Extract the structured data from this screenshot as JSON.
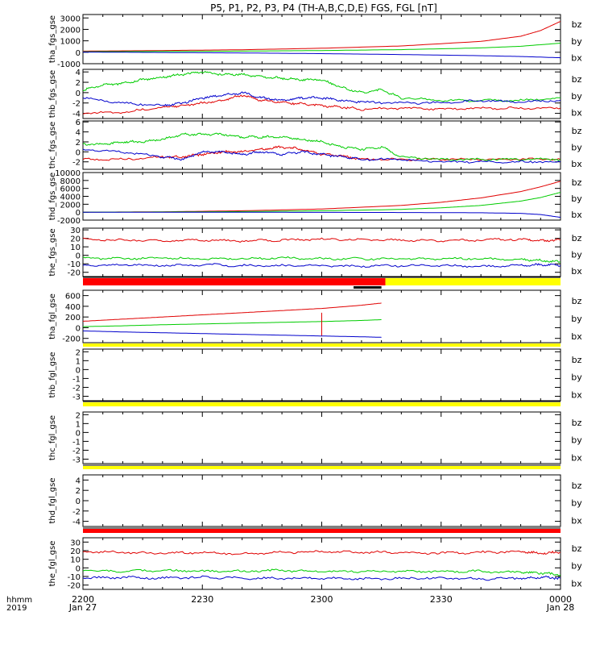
{
  "title": "P5, P1, P2, P3, P4 (TH-A,B,C,D,E) FGS, FGL [nT]",
  "colors": {
    "bz": "#e00000",
    "by": "#00cc00",
    "bx": "#0000cc",
    "flag_red": "#ff0000",
    "flag_yellow": "#ffff00",
    "flag_black": "#000000"
  },
  "x_axis": {
    "row_labels": [
      "hhmm",
      "2019"
    ],
    "ticks": [
      {
        "value": 0,
        "top": "2200",
        "bottom": "Jan 27"
      },
      {
        "value": 30,
        "top": "2230",
        "bottom": ""
      },
      {
        "value": 60,
        "top": "2300",
        "bottom": ""
      },
      {
        "value": 90,
        "top": "2330",
        "bottom": ""
      },
      {
        "value": 120,
        "top": "0000",
        "bottom": "Jan 28"
      }
    ],
    "range_minutes": [
      0,
      120
    ]
  },
  "chart_data": [
    {
      "type": "line",
      "ylabel": "tha_fgs_gse",
      "ylim": [
        -1000,
        3300
      ],
      "yticks": [
        -1000,
        0,
        1000,
        2000,
        3000
      ],
      "legend": [
        "bz",
        "by",
        "bx"
      ],
      "series": [
        {
          "name": "bz",
          "x": [
            0,
            20,
            40,
            60,
            80,
            100,
            110,
            115,
            120
          ],
          "values": [
            100,
            150,
            220,
            350,
            550,
            950,
            1400,
            1900,
            2700
          ]
        },
        {
          "name": "by",
          "x": [
            0,
            20,
            40,
            60,
            80,
            100,
            110,
            120
          ],
          "values": [
            50,
            70,
            100,
            150,
            230,
            380,
            520,
            800
          ]
        },
        {
          "name": "bx",
          "x": [
            0,
            20,
            40,
            60,
            80,
            100,
            110,
            120
          ],
          "values": [
            20,
            -20,
            -60,
            -120,
            -200,
            -300,
            -370,
            -480
          ]
        }
      ]
    },
    {
      "type": "line",
      "ylabel": "thb_fgs_gse",
      "ylim": [
        -5,
        4.5
      ],
      "yticks": [
        -4,
        -2,
        0,
        2,
        4
      ],
      "legend": [
        "bz",
        "by",
        "bx"
      ],
      "series": [
        {
          "name": "bz",
          "x": [
            0,
            10,
            20,
            25,
            30,
            35,
            40,
            45,
            50,
            55,
            60,
            65,
            70,
            80,
            90,
            100,
            110,
            120
          ],
          "values": [
            -4,
            -3.8,
            -2.8,
            -2.5,
            -2,
            -1.5,
            -0.5,
            -1.5,
            -1.8,
            -2.2,
            -2.5,
            -2.8,
            -3.2,
            -3,
            -3.2,
            -3,
            -3,
            -3
          ]
        },
        {
          "name": "by",
          "x": [
            0,
            5,
            10,
            15,
            20,
            25,
            30,
            35,
            40,
            45,
            50,
            55,
            60,
            65,
            70,
            75,
            80,
            90,
            100,
            110,
            120
          ],
          "values": [
            0.5,
            1.5,
            1.8,
            2.5,
            3,
            3.5,
            4,
            3.5,
            3.5,
            3,
            2.8,
            2.5,
            2.5,
            1,
            0,
            0.5,
            -1,
            -1.5,
            -1.5,
            -1.5,
            -1
          ]
        },
        {
          "name": "bx",
          "x": [
            0,
            10,
            20,
            25,
            30,
            35,
            40,
            45,
            50,
            55,
            60,
            65,
            70,
            80,
            90,
            100,
            110,
            120
          ],
          "values": [
            -1,
            -2,
            -2.5,
            -2,
            -1,
            -0.5,
            0,
            -1,
            -1.5,
            -1,
            -1,
            -1.5,
            -1.8,
            -2,
            -2,
            -1.5,
            -1.8,
            -1.5
          ]
        }
      ]
    },
    {
      "type": "line",
      "ylabel": "thc_fgs_gse",
      "ylim": [
        -3.5,
        6.2
      ],
      "yticks": [
        -2,
        0,
        2,
        4,
        6
      ],
      "legend": [
        "bz",
        "by",
        "bx"
      ],
      "series": [
        {
          "name": "bz",
          "x": [
            0,
            10,
            20,
            25,
            30,
            35,
            40,
            45,
            50,
            55,
            60,
            65,
            70,
            80,
            90,
            100,
            110,
            120
          ],
          "values": [
            -1.5,
            -1.5,
            -1,
            -1,
            -0.5,
            0,
            0,
            0.5,
            1,
            0.5,
            -0.5,
            -0.8,
            -1.5,
            -1.5,
            -1.5,
            -1.5,
            -1.5,
            -1.5
          ]
        },
        {
          "name": "by",
          "x": [
            0,
            5,
            10,
            15,
            20,
            25,
            30,
            35,
            40,
            45,
            50,
            55,
            60,
            65,
            70,
            75,
            80,
            90,
            100,
            110,
            120
          ],
          "values": [
            1.5,
            1.5,
            2,
            2,
            2.5,
            3.5,
            3.5,
            3.5,
            3,
            3,
            3,
            2.5,
            2,
            1,
            0.5,
            1,
            -1,
            -1.5,
            -1.5,
            -1.5,
            -1.5
          ]
        },
        {
          "name": "bx",
          "x": [
            0,
            10,
            20,
            25,
            30,
            35,
            40,
            45,
            50,
            55,
            60,
            65,
            70,
            80,
            90,
            100,
            110,
            120
          ],
          "values": [
            0.5,
            0,
            -1,
            -1.5,
            0,
            0,
            -0.5,
            0,
            -0.5,
            0,
            -0.5,
            -1,
            -1.5,
            -1.5,
            -2,
            -2,
            -2,
            -2
          ]
        }
      ]
    },
    {
      "type": "line",
      "ylabel": "thd_fgs_gse",
      "ylim": [
        -2000,
        10000
      ],
      "yticks": [
        -2000,
        0,
        2000,
        4000,
        6000,
        8000,
        10000
      ],
      "legend": [
        "bz",
        "by",
        "bx"
      ],
      "series": [
        {
          "name": "bz",
          "x": [
            0,
            20,
            40,
            60,
            80,
            90,
            100,
            110,
            115,
            120
          ],
          "values": [
            0,
            100,
            350,
            800,
            1700,
            2500,
            3600,
            5200,
            6400,
            7800
          ]
        },
        {
          "name": "by",
          "x": [
            0,
            20,
            40,
            60,
            80,
            90,
            100,
            110,
            115,
            120
          ],
          "values": [
            0,
            50,
            150,
            350,
            700,
            1100,
            1700,
            2800,
            3700,
            5000
          ]
        },
        {
          "name": "bx",
          "x": [
            0,
            40,
            60,
            80,
            100,
            110,
            115,
            120
          ],
          "values": [
            0,
            -20,
            -50,
            -80,
            -150,
            -300,
            -600,
            -1300
          ]
        }
      ]
    },
    {
      "type": "line",
      "ylabel": "the_fgs_gse",
      "ylim": [
        -25,
        32
      ],
      "yticks": [
        -20,
        -10,
        0,
        10,
        20,
        30
      ],
      "legend": [
        "bz",
        "by",
        "bx"
      ],
      "series": [
        {
          "name": "bz",
          "x": [
            0,
            10,
            20,
            30,
            40,
            50,
            60,
            70,
            80,
            90,
            100,
            110,
            115,
            120
          ],
          "values": [
            19,
            18,
            17,
            18,
            17,
            18,
            19,
            18,
            18,
            17,
            18,
            19,
            17,
            18
          ]
        },
        {
          "name": "by",
          "x": [
            0,
            10,
            20,
            30,
            40,
            50,
            60,
            70,
            80,
            90,
            100,
            110,
            115,
            120
          ],
          "values": [
            -3,
            -4,
            -3,
            -4,
            -4,
            -3,
            -4,
            -4,
            -4,
            -4,
            -4,
            -5,
            -6,
            -8
          ]
        },
        {
          "name": "bx",
          "x": [
            0,
            10,
            20,
            30,
            40,
            50,
            60,
            70,
            80,
            90,
            100,
            110,
            115,
            120
          ],
          "values": [
            -12,
            -11,
            -12,
            -11,
            -12,
            -12,
            -12,
            -13,
            -12,
            -12,
            -13,
            -12,
            -11,
            -12
          ]
        }
      ]
    },
    {
      "type": "line",
      "ylabel": "tha_fgl_gse",
      "ylim": [
        -280,
        700
      ],
      "yticks": [
        -200,
        0,
        200,
        400,
        600
      ],
      "legend": [
        "bz",
        "by",
        "bx"
      ],
      "spike": {
        "x": 60,
        "from": 280,
        "to": -150
      },
      "series": [
        {
          "name": "bz",
          "x": [
            0,
            10,
            20,
            30,
            40,
            50,
            60,
            70,
            75
          ],
          "values": [
            120,
            160,
            200,
            240,
            280,
            320,
            360,
            420,
            460
          ]
        },
        {
          "name": "by",
          "x": [
            0,
            10,
            20,
            30,
            40,
            50,
            60,
            70,
            75
          ],
          "values": [
            20,
            35,
            55,
            70,
            85,
            100,
            115,
            135,
            150
          ]
        },
        {
          "name": "bx",
          "x": [
            0,
            10,
            20,
            30,
            40,
            50,
            60,
            70,
            75
          ],
          "values": [
            -60,
            -80,
            -95,
            -110,
            -125,
            -140,
            -155,
            -170,
            -180
          ]
        }
      ]
    },
    {
      "type": "line",
      "ylabel": "thb_fgl_gse",
      "ylim": [
        -3.5,
        2.3
      ],
      "yticks": [
        -3,
        -2,
        -1,
        0,
        1,
        2
      ],
      "legend": [
        "bz",
        "by",
        "bx"
      ],
      "series": []
    },
    {
      "type": "line",
      "ylabel": "thc_fgl_gse",
      "ylim": [
        -3.5,
        2.3
      ],
      "yticks": [
        -3,
        -2,
        -1,
        0,
        1,
        2
      ],
      "legend": [
        "bz",
        "by",
        "bx"
      ],
      "series": []
    },
    {
      "type": "line",
      "ylabel": "thd_fgl_gse",
      "ylim": [
        -5,
        5
      ],
      "yticks": [
        -4,
        -2,
        0,
        2,
        4
      ],
      "legend": [
        "bz",
        "by",
        "bx"
      ],
      "series": []
    },
    {
      "type": "line",
      "ylabel": "the_fgl_gse",
      "ylim": [
        -25,
        35
      ],
      "yticks": [
        -20,
        -10,
        0,
        10,
        20,
        30
      ],
      "legend": [
        "bz",
        "by",
        "bx"
      ],
      "series": [
        {
          "name": "bz",
          "x": [
            0,
            10,
            20,
            30,
            40,
            50,
            60,
            70,
            80,
            90,
            100,
            110,
            115,
            120
          ],
          "values": [
            19,
            18,
            17,
            18,
            16,
            18,
            19,
            18,
            18,
            17,
            18,
            19,
            17,
            18
          ]
        },
        {
          "name": "by",
          "x": [
            0,
            10,
            20,
            30,
            40,
            50,
            60,
            70,
            80,
            90,
            100,
            110,
            115,
            120
          ],
          "values": [
            -3,
            -4,
            -3,
            -4,
            -4,
            -3,
            -4,
            -4,
            -4,
            -4,
            -4,
            -5,
            -6,
            -8
          ]
        },
        {
          "name": "bx",
          "x": [
            0,
            10,
            20,
            30,
            40,
            50,
            60,
            70,
            80,
            90,
            100,
            110,
            115,
            120
          ],
          "values": [
            -12,
            -11,
            -12,
            -11,
            -12,
            -12,
            -12,
            -13,
            -12,
            -12,
            -13,
            -12,
            -11,
            -12
          ]
        }
      ]
    }
  ],
  "status_bars": [
    {
      "above_panel": 5,
      "segments": [
        {
          "from": 0,
          "to": 76,
          "color": "flag_red"
        },
        {
          "from": 76,
          "to": 120,
          "color": "flag_yellow"
        }
      ],
      "marker": {
        "from": 68,
        "to": 75
      }
    },
    {
      "above_panel": 6,
      "segments": [
        {
          "from": 0,
          "to": 120,
          "color": "flag_yellow"
        }
      ]
    },
    {
      "above_panel": 7,
      "segments": [
        {
          "from": 0,
          "to": 120,
          "color": "flag_yellow"
        }
      ]
    },
    {
      "above_panel": 8,
      "segments": [
        {
          "from": 0,
          "to": 120,
          "color": "flag_yellow"
        }
      ]
    },
    {
      "above_panel": 9,
      "segments": [
        {
          "from": 0,
          "to": 120,
          "color": "flag_red"
        }
      ]
    }
  ]
}
